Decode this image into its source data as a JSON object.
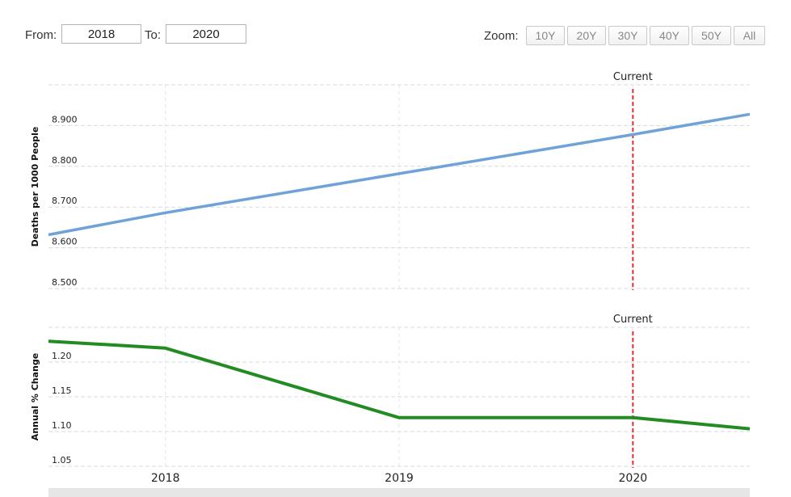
{
  "range": {
    "from_label": "From:",
    "from_value": "2018",
    "to_label": "To:",
    "to_value": "2020",
    "zoom_label": "Zoom:",
    "zoom_buttons": [
      "10Y",
      "20Y",
      "30Y",
      "40Y",
      "50Y",
      "All"
    ]
  },
  "colors": {
    "death_rate_line": "#6fa3d8",
    "change_line": "#228b22",
    "current_marker": "#e03030",
    "grid": "#d8d8d8"
  },
  "chart_data": [
    {
      "type": "line",
      "ylabel": "Deaths per 1000 People",
      "x": [
        2017.5,
        2018,
        2019,
        2020,
        2020.5
      ],
      "y": [
        8.632,
        8.686,
        8.782,
        8.878,
        8.928
      ],
      "yticks": [
        "8.500",
        "8.600",
        "8.700",
        "8.800",
        "8.900"
      ],
      "ylim": [
        8.5,
        9.0
      ],
      "xlim": [
        2017.5,
        2020.5
      ],
      "xticks": [
        "2018",
        "2019",
        "2020"
      ],
      "current_x": 2020,
      "current_label": "Current",
      "grid": true
    },
    {
      "type": "line",
      "ylabel": "Annual % Change",
      "x": [
        2017.5,
        2018,
        2019,
        2020,
        2020.5
      ],
      "y": [
        1.23,
        1.22,
        1.12,
        1.12,
        1.104
      ],
      "yticks": [
        "1.05",
        "1.10",
        "1.15",
        "1.20"
      ],
      "ylim": [
        1.05,
        1.25
      ],
      "xlim": [
        2017.5,
        2020.5
      ],
      "xticks": [
        "2018",
        "2019",
        "2020"
      ],
      "current_x": 2020,
      "current_label": "Current",
      "grid": true
    }
  ]
}
